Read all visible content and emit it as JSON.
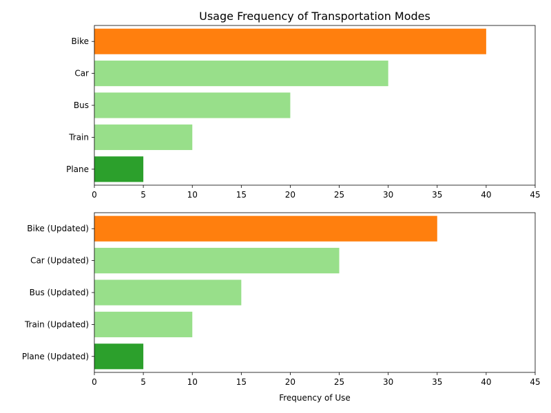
{
  "chart_data": [
    {
      "type": "bar",
      "orientation": "horizontal",
      "title": "Usage Frequency of Transportation Modes",
      "xlabel": "",
      "ylabel": "",
      "xlim": [
        0,
        45
      ],
      "xticks": [
        0,
        5,
        10,
        15,
        20,
        25,
        30,
        35,
        40,
        45
      ],
      "categories": [
        "Bike",
        "Car",
        "Bus",
        "Train",
        "Plane"
      ],
      "values": [
        40,
        30,
        20,
        10,
        5
      ],
      "colors": [
        "#ff7f0e",
        "#98df8a",
        "#98df8a",
        "#98df8a",
        "#2ca02c"
      ],
      "grid": false
    },
    {
      "type": "bar",
      "orientation": "horizontal",
      "title": "",
      "xlabel": "Frequency of Use",
      "ylabel": "",
      "xlim": [
        0,
        45
      ],
      "xticks": [
        0,
        5,
        10,
        15,
        20,
        25,
        30,
        35,
        40,
        45
      ],
      "categories": [
        "Bike (Updated)",
        "Car (Updated)",
        "Bus (Updated)",
        "Train (Updated)",
        "Plane (Updated)"
      ],
      "values": [
        35,
        25,
        15,
        10,
        5
      ],
      "colors": [
        "#ff7f0e",
        "#98df8a",
        "#98df8a",
        "#98df8a",
        "#2ca02c"
      ],
      "grid": false
    }
  ]
}
